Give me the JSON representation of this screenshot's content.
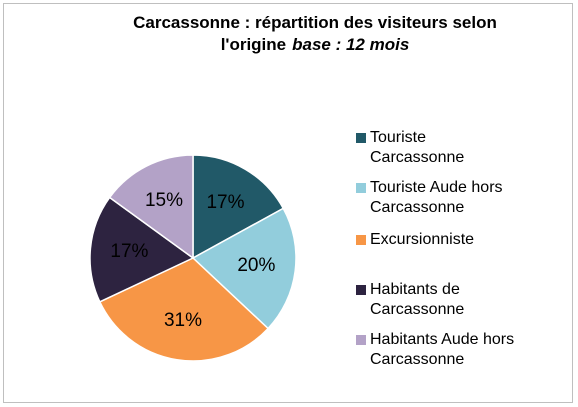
{
  "chart_data": {
    "type": "pie",
    "title": "Carcassonne : répartition des visiteurs selon l'origine",
    "subtitle": "base : 12 mois",
    "categories": [
      "Touriste Carcassonne",
      "Touriste Aude hors Carcassonne",
      "Excursionniste",
      "Habitants de Carcassonne",
      "Habitants Aude hors Carcassonne"
    ],
    "values": [
      17,
      20,
      31,
      17,
      15
    ],
    "value_labels": [
      "17%",
      "20%",
      "31%",
      "17%",
      "15%"
    ],
    "colors": [
      "#215968",
      "#92cddc",
      "#f79646",
      "#2d2340",
      "#b3a2c7"
    ],
    "legend": "right"
  }
}
